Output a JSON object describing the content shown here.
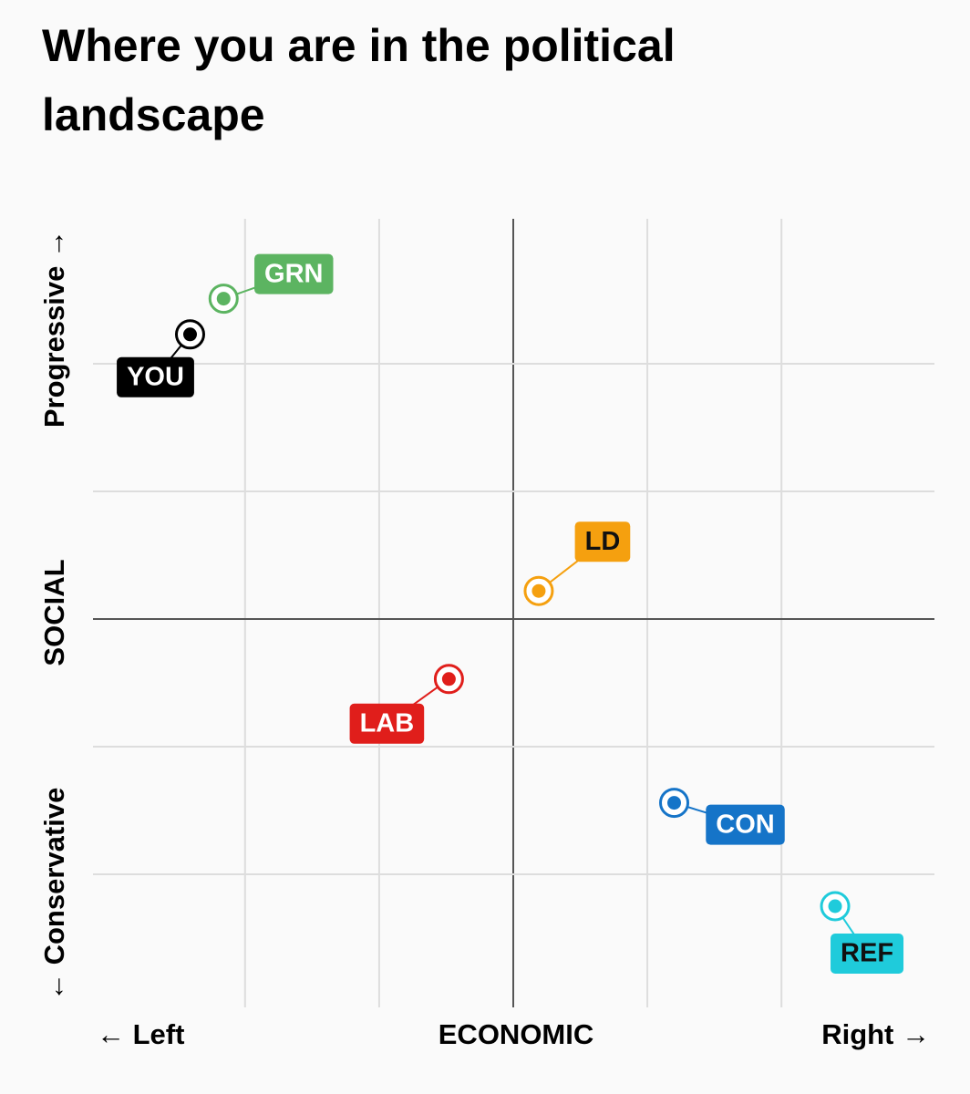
{
  "chart_data": {
    "type": "scatter",
    "title": "Where you are in the political landscape",
    "x_label": "ECONOMIC",
    "x_left_label": "← Left",
    "x_right_label": "Right →",
    "y_label": "SOCIAL",
    "y_top_label": "Progressive →",
    "y_bottom_label": "← Conservative",
    "xlim": [
      -3.1,
      3.1
    ],
    "ylim": [
      -3,
      3.1
    ],
    "xticks": [
      -2,
      -1,
      0,
      1,
      2
    ],
    "yticks": [
      -2,
      -1,
      0,
      1,
      2
    ],
    "grid": true,
    "points": [
      {
        "name": "YOU",
        "color": "#000000",
        "x": -2.41,
        "y": 2.23
      },
      {
        "name": "GRN",
        "color": "#5cb461",
        "x": -2.16,
        "y": 2.51
      },
      {
        "name": "LD",
        "color": "#f5a00f",
        "x": 0.19,
        "y": 0.22
      },
      {
        "name": "LAB",
        "color": "#e01e1b",
        "x": -0.48,
        "y": -0.47
      },
      {
        "name": "CON",
        "color": "#1574c8",
        "x": 1.2,
        "y": -1.44
      },
      {
        "name": "REF",
        "color": "#1fcbdb",
        "x": 2.4,
        "y": -2.25
      }
    ]
  }
}
